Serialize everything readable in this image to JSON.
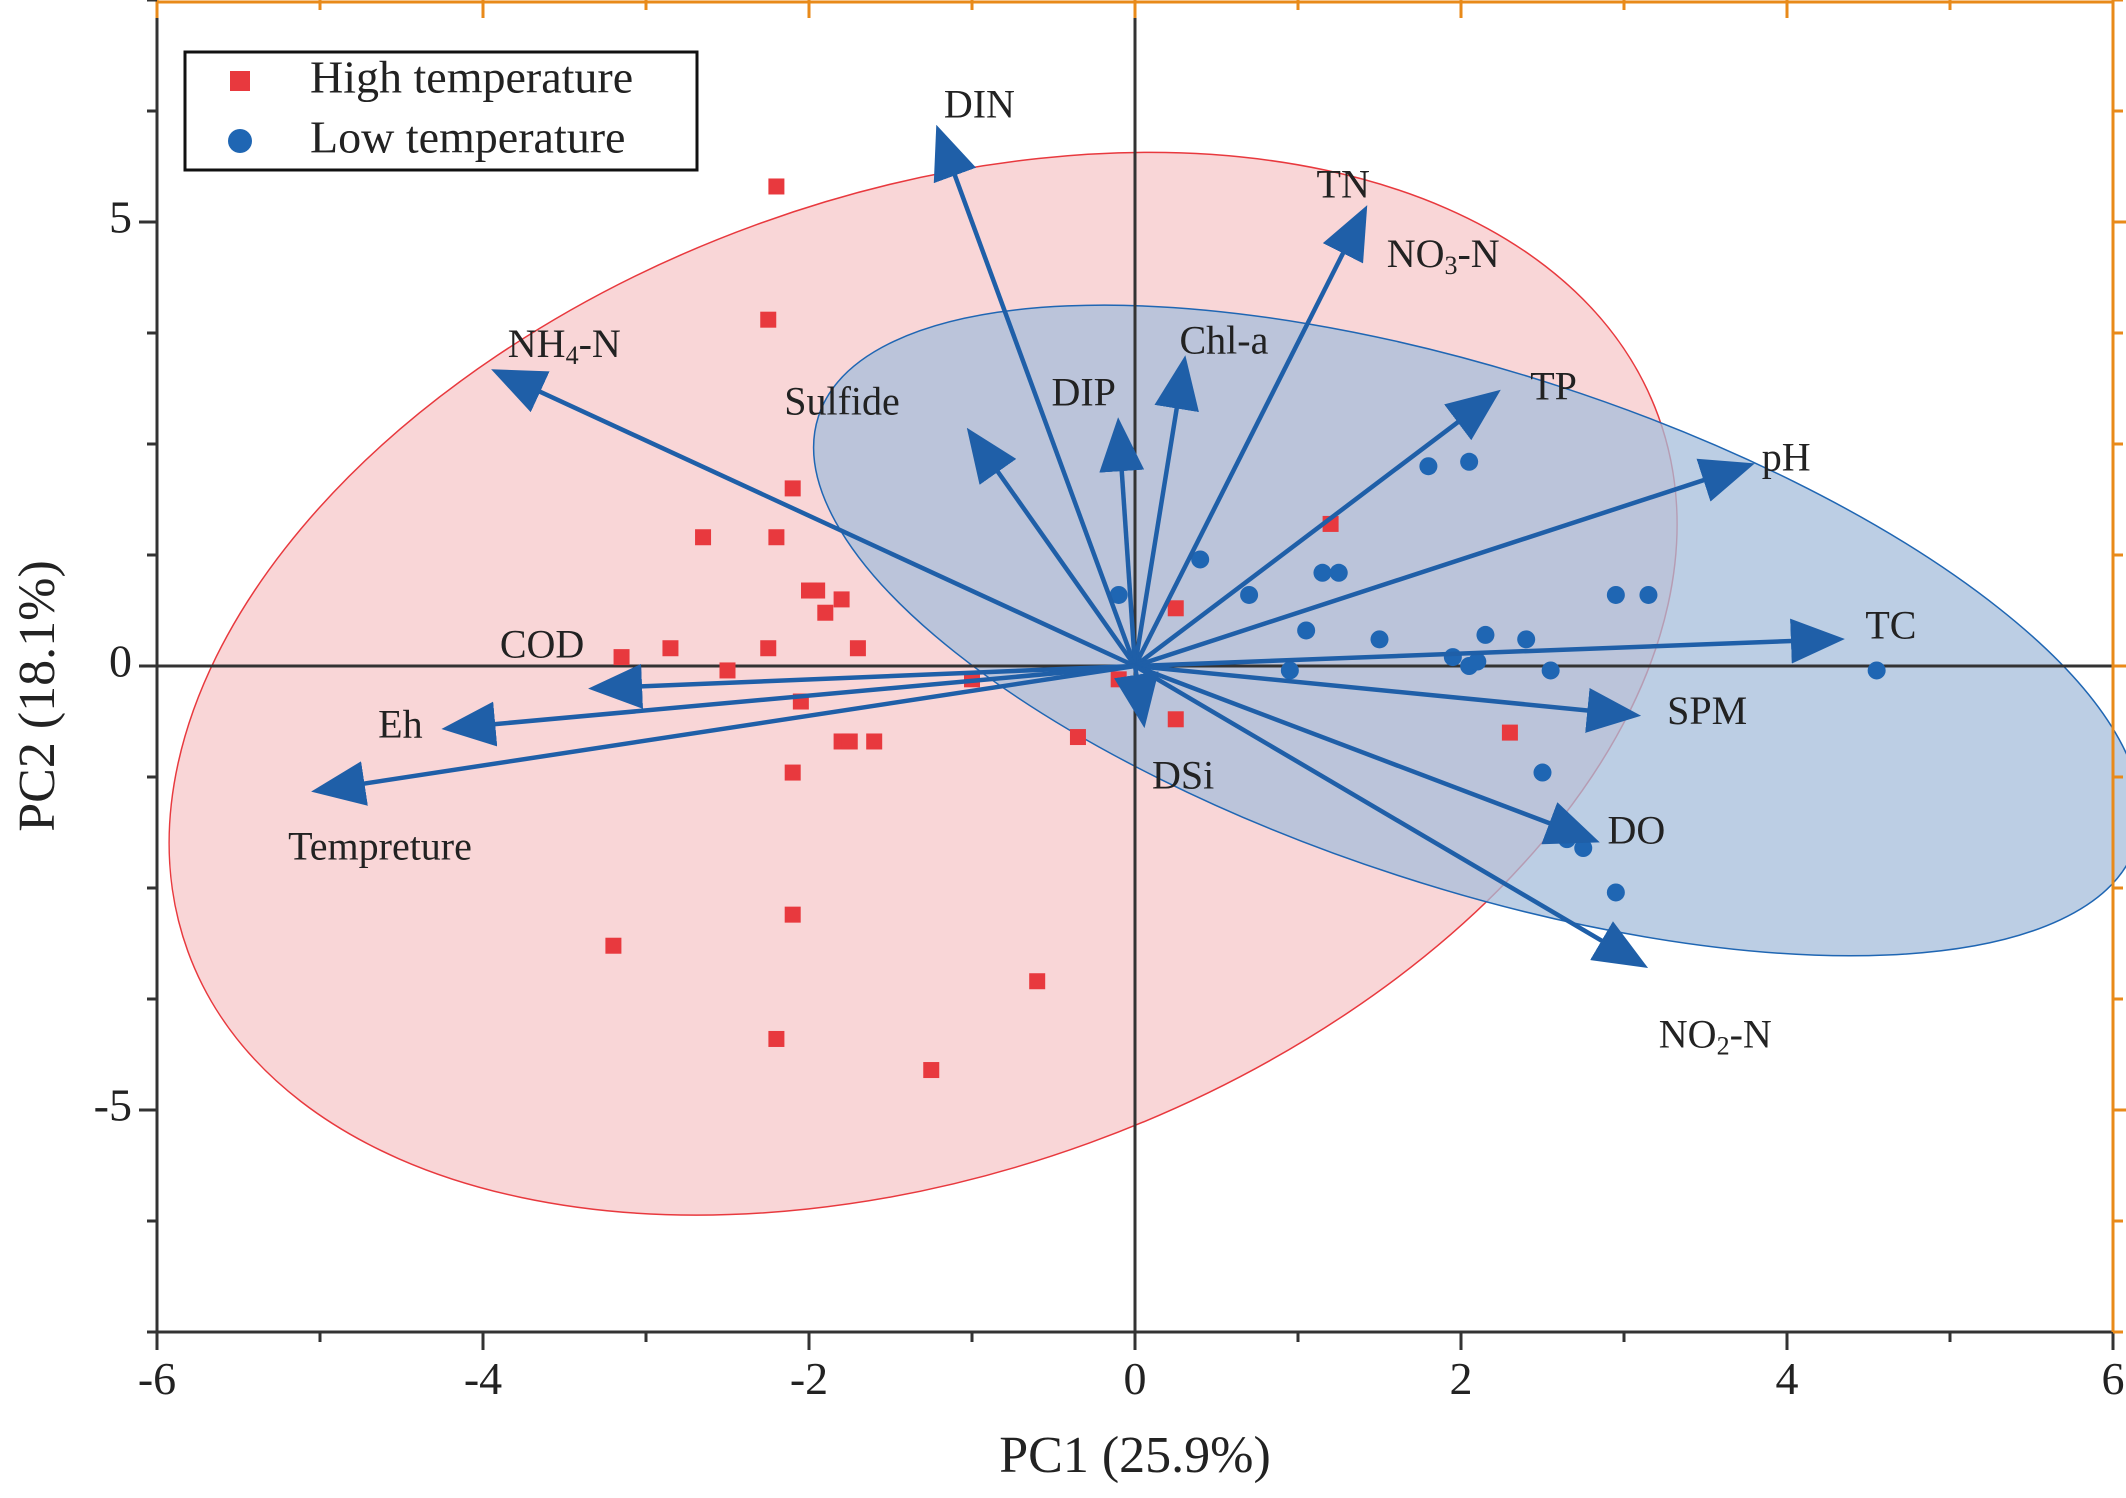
{
  "chart_data": {
    "type": "scatter",
    "subtype": "pca-biplot",
    "xlabel": "PC1 (25.9%)",
    "ylabel": "PC2 (18.1%)",
    "xlim": [
      -6,
      6
    ],
    "ylim": [
      -7.5,
      7.5
    ],
    "xticks": [
      -6,
      -4,
      -2,
      0,
      2,
      4,
      6
    ],
    "xtick_labels": [
      "-6",
      "-4",
      "-2",
      "0",
      "2",
      "4",
      "6"
    ],
    "yticks": [
      -5,
      0,
      5
    ],
    "ytick_labels": [
      "-5",
      "0",
      "5"
    ],
    "grid": false,
    "legend_position": "top-left",
    "colors": {
      "high": "#e8393e",
      "high_fill": "#f6c4c6",
      "low": "#1f66b3",
      "low_fill": "#a5bddb",
      "arrow": "#1f5fa8",
      "axis": "#333333",
      "frame_accent": "#e88a1a"
    },
    "series": [
      {
        "name": "High temperature",
        "marker": "square",
        "color": "#e8393e",
        "ellipse": {
          "center": [
            -1.3,
            -0.2
          ],
          "rx": 4.8,
          "ry": 5.5,
          "angle": -20
        },
        "points": [
          [
            -2.2,
            5.4
          ],
          [
            -2.25,
            3.9
          ],
          [
            -2.1,
            2.0
          ],
          [
            -2.65,
            1.45
          ],
          [
            -2.2,
            1.45
          ],
          [
            -2.0,
            0.85
          ],
          [
            -1.95,
            0.85
          ],
          [
            -1.8,
            0.75
          ],
          [
            -1.9,
            0.6
          ],
          [
            -3.15,
            0.1
          ],
          [
            -2.85,
            0.2
          ],
          [
            -2.25,
            0.2
          ],
          [
            -1.7,
            0.2
          ],
          [
            -2.5,
            -0.05
          ],
          [
            -2.05,
            -0.4
          ],
          [
            -1.8,
            -0.85
          ],
          [
            -1.75,
            -0.85
          ],
          [
            -1.6,
            -0.85
          ],
          [
            -2.1,
            -1.2
          ],
          [
            -2.1,
            -2.8
          ],
          [
            -3.2,
            -3.15
          ],
          [
            -2.2,
            -4.2
          ],
          [
            -1.25,
            -4.55
          ],
          [
            -0.6,
            -3.55
          ],
          [
            -0.35,
            -0.8
          ],
          [
            -1.0,
            -0.15
          ],
          [
            -0.1,
            -0.15
          ],
          [
            0.25,
            0.65
          ],
          [
            0.25,
            -0.6
          ],
          [
            1.2,
            1.6
          ],
          [
            2.3,
            -0.75
          ]
        ]
      },
      {
        "name": "Low temperature",
        "marker": "circle",
        "color": "#1f66b3",
        "ellipse": {
          "center": [
            2.1,
            0.4
          ],
          "rx": 4.25,
          "ry": 2.9,
          "angle": 18
        },
        "points": [
          [
            -0.1,
            0.8
          ],
          [
            0.4,
            1.2
          ],
          [
            0.7,
            0.8
          ],
          [
            1.15,
            1.05
          ],
          [
            1.25,
            1.05
          ],
          [
            1.05,
            0.4
          ],
          [
            1.5,
            0.3
          ],
          [
            1.8,
            2.25
          ],
          [
            2.05,
            2.3
          ],
          [
            1.95,
            0.1
          ],
          [
            2.05,
            0.0
          ],
          [
            2.1,
            0.05
          ],
          [
            2.15,
            0.35
          ],
          [
            2.4,
            0.3
          ],
          [
            2.55,
            -0.05
          ],
          [
            0.95,
            -0.05
          ],
          [
            2.95,
            0.8
          ],
          [
            3.15,
            0.8
          ],
          [
            2.5,
            -1.2
          ],
          [
            2.65,
            -1.95
          ],
          [
            2.75,
            -2.05
          ],
          [
            2.95,
            -2.55
          ],
          [
            4.55,
            -0.05
          ]
        ]
      }
    ],
    "loadings": [
      {
        "label": "DIN",
        "x": -1.2,
        "y": 6.0
      },
      {
        "label": "TN",
        "x": 1.4,
        "y": 5.1
      },
      {
        "label": "NO3-N",
        "label_main": "NO",
        "label_sub": "3",
        "label_tail": "-N",
        "x": 1.4,
        "y": 5.1
      },
      {
        "label": "Chl-a",
        "x": 0.3,
        "y": 3.4
      },
      {
        "label": "DIP",
        "x": -0.1,
        "y": 2.7
      },
      {
        "label": "Sulfide",
        "x": -1.0,
        "y": 2.6
      },
      {
        "label": "NH4-N",
        "label_main": "NH",
        "label_sub": "4",
        "label_tail": "-N",
        "x": -3.9,
        "y": 3.3
      },
      {
        "label": "TP",
        "x": 2.2,
        "y": 3.05
      },
      {
        "label": "pH",
        "x": 3.75,
        "y": 2.25
      },
      {
        "label": "TC",
        "x": 4.3,
        "y": 0.3
      },
      {
        "label": "SPM",
        "x": 3.05,
        "y": -0.55
      },
      {
        "label": "DO",
        "x": 2.8,
        "y": -1.95
      },
      {
        "label": "NO2-N",
        "label_main": "NO",
        "label_sub": "2",
        "label_tail": "-N",
        "x": 3.1,
        "y": -3.35
      },
      {
        "label": "DSi",
        "x": 0.05,
        "y": -0.6
      },
      {
        "label": "COD",
        "x": -3.3,
        "y": -0.25
      },
      {
        "label": "Eh",
        "x": -4.2,
        "y": -0.7
      },
      {
        "label": "Tempreture",
        "x": -5.0,
        "y": -1.4
      }
    ]
  }
}
